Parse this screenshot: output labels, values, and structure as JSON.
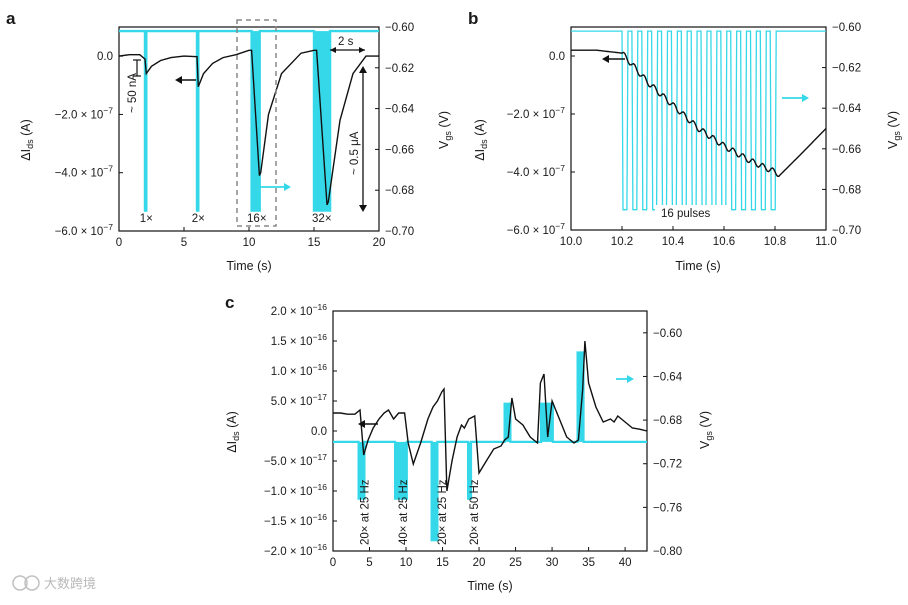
{
  "colors": {
    "cyan": "#35d8e8",
    "black": "#111111",
    "grey": "#888888"
  },
  "watermark": {
    "text": "大数跨境"
  },
  "panels": [
    {
      "letter": "a",
      "xlabel": "Time (s)",
      "ylabel_left": "ΔI",
      "ylabel_left_sub": "ds",
      "ylabel_left_unit": " (A)",
      "ylabel_right": "V",
      "ylabel_right_sub": "gs",
      "ylabel_right_unit": " (V)",
      "xlim": [
        0,
        20
      ],
      "ylim_left": [
        -6e-07,
        1e-07
      ],
      "ylim_right": [
        -0.7,
        -0.6
      ],
      "xticks": [
        "0",
        "5",
        "10",
        "15",
        "20"
      ],
      "xticks_values": [
        0,
        5,
        10,
        15,
        20
      ],
      "yticks_left": [
        "0.0",
        "−2.0 × 10",
        "−4.0 × 10",
        "−6.0 × 10"
      ],
      "yticks_left_exp": [
        "",
        "−7",
        "−7",
        "−7"
      ],
      "yticks_left_values": [
        0,
        -2e-07,
        -4e-07,
        -6e-07
      ],
      "yticks_right": [
        "−0.60",
        "−0.62",
        "−0.64",
        "−0.66",
        "−0.68",
        "−0.70"
      ],
      "yticks_right_values": [
        -0.6,
        -0.62,
        -0.64,
        -0.66,
        -0.68,
        -0.7
      ],
      "annotations": {
        "current_50nA": "~ 50 nA",
        "current_05uA": "~ 0.5 μA",
        "time_2s": "2 s",
        "pulse_labels": [
          "1×",
          "2×",
          "16×",
          "32×"
        ]
      }
    },
    {
      "letter": "b",
      "xlabel": "Time (s)",
      "ylabel_left": "ΔI",
      "ylabel_left_sub": "ds",
      "ylabel_left_unit": " (A)",
      "ylabel_right": "V",
      "ylabel_right_sub": "gs",
      "ylabel_right_unit": " (V)",
      "xlim": [
        10.0,
        11.0
      ],
      "ylim_left": [
        -6e-07,
        1e-07
      ],
      "ylim_right": [
        -0.7,
        -0.6
      ],
      "xticks": [
        "10.0",
        "10.2",
        "10.4",
        "10.6",
        "10.8",
        "11.0"
      ],
      "xticks_values": [
        10.0,
        10.2,
        10.4,
        10.6,
        10.8,
        11.0
      ],
      "yticks_left": [
        "0.0",
        "−2.0 × 10",
        "−4.0 × 10",
        "−6.0 × 10"
      ],
      "yticks_left_exp": [
        "",
        "−7",
        "−7",
        "−7"
      ],
      "yticks_left_values": [
        0,
        -2e-07,
        -4e-07,
        -6e-07
      ],
      "yticks_right": [
        "−0.60",
        "−0.62",
        "−0.64",
        "−0.66",
        "−0.68",
        "−0.70"
      ],
      "yticks_right_values": [
        -0.6,
        -0.62,
        -0.64,
        -0.66,
        -0.68,
        -0.7
      ],
      "annotations": {
        "pulses": "16 pulses"
      }
    },
    {
      "letter": "c",
      "xlabel": "Time (s)",
      "ylabel_left": "ΔI",
      "ylabel_left_sub": "ds",
      "ylabel_left_unit": " (A)",
      "ylabel_right": "V",
      "ylabel_right_sub": "gs",
      "ylabel_right_unit": " (V)",
      "xlim": [
        0,
        43
      ],
      "ylim_left": [
        -2e-16,
        2e-16
      ],
      "ylim_right": [
        -0.8,
        -0.58
      ],
      "xticks": [
        "0",
        "5",
        "10",
        "15",
        "20",
        "25",
        "30",
        "35",
        "40"
      ],
      "xticks_values": [
        0,
        5,
        10,
        15,
        20,
        25,
        30,
        35,
        40
      ],
      "yticks_left": [
        "2.0 × 10",
        "1.5 × 10",
        "1.0 × 10",
        "5.0 × 10",
        "0.0",
        "−5.0 × 10",
        "−1.0 × 10",
        "−1.5 × 10",
        "−2.0 × 10"
      ],
      "yticks_left_exp": [
        "−16",
        "−16",
        "−16",
        "−17",
        "",
        "−17",
        "−16",
        "−16",
        "−16"
      ],
      "yticks_left_values": [
        2e-16,
        1.5e-16,
        1e-16,
        5e-17,
        0,
        -5e-17,
        -1e-16,
        -1.5e-16,
        -2e-16
      ],
      "yticks_right": [
        "−0.60",
        "−0.64",
        "−0.68",
        "−0.72",
        "−0.76",
        "−0.80"
      ],
      "yticks_right_values": [
        -0.6,
        -0.64,
        -0.68,
        -0.72,
        -0.76,
        -0.8
      ],
      "annotations": {
        "conditions": [
          "20× at 25 Hz",
          "40× at 25 Hz",
          "20× at 25 Hz",
          "20× at 50 Hz"
        ]
      }
    }
  ],
  "chart_data": [
    {
      "type": "line",
      "title": "a",
      "xlabel": "Time (s)",
      "ylabel": "ΔIds (A)",
      "y2label": "Vgs (V)",
      "xlim": [
        0,
        20
      ],
      "ylim": [
        -6e-07,
        1e-07
      ],
      "y2lim": [
        -0.7,
        -0.6
      ],
      "series": [
        {
          "name": "ΔIds",
          "axis": "left",
          "color": "#111111",
          "x": [
            0,
            0.8,
            1.6,
            2.0,
            2.1,
            2.5,
            3.2,
            4.0,
            5.0,
            6.0,
            6.1,
            6.5,
            7.2,
            8.0,
            9.0,
            10.0,
            10.2,
            10.8,
            10.9,
            11.5,
            12.5,
            14.0,
            15.0,
            15.2,
            16.0,
            16.1,
            17.0,
            18.0,
            19.0,
            20.0
          ],
          "y": [
            0,
            5e-09,
            5e-09,
            -1e-08,
            -6e-08,
            -3.5e-08,
            -1.5e-08,
            -5e-09,
            0,
            -2e-09,
            -1.05e-07,
            -6e-08,
            -2.5e-08,
            -5e-09,
            5e-09,
            2e-08,
            2e-08,
            -4.1e-07,
            -4e-07,
            -2e-07,
            -6e-08,
            1e-08,
            2e-08,
            2e-08,
            -5.1e-07,
            -5e-07,
            -2.2e-07,
            -6e-08,
            0,
            0
          ]
        },
        {
          "name": "Vgs",
          "axis": "right",
          "color": "#35d8e8",
          "x": [
            0,
            2.0,
            2.0,
            2.1,
            2.1,
            6.0,
            6.0,
            6.1,
            6.1,
            10.2,
            10.2,
            10.82,
            10.82,
            15.0,
            15.0,
            16.24,
            16.24,
            20.0
          ],
          "y": [
            -0.602,
            -0.602,
            -0.69,
            -0.69,
            -0.602,
            -0.602,
            -0.69,
            -0.69,
            -0.602,
            -0.602,
            -0.69,
            -0.69,
            -0.602,
            -0.602,
            -0.69,
            -0.69,
            -0.602,
            -0.602
          ]
        }
      ]
    },
    {
      "type": "line",
      "title": "b",
      "xlabel": "Time (s)",
      "ylabel": "ΔIds (A)",
      "y2label": "Vgs (V)",
      "xlim": [
        10.0,
        11.0
      ],
      "ylim": [
        -6e-07,
        1e-07
      ],
      "y2lim": [
        -0.7,
        -0.6
      ],
      "series": [
        {
          "name": "ΔIds",
          "axis": "left",
          "color": "#111111",
          "x": [
            10.0,
            10.1,
            10.2,
            10.25,
            10.3,
            10.4,
            10.5,
            10.6,
            10.7,
            10.8,
            10.82,
            10.9,
            11.0
          ],
          "y": [
            2e-08,
            2e-08,
            1e-08,
            -4e-08,
            -9e-08,
            -1.7e-07,
            -2.5e-07,
            -3.1e-07,
            -3.6e-07,
            -4e-07,
            -4.1e-07,
            -3.4e-07,
            -2.5e-07
          ]
        },
        {
          "name": "Vgs",
          "axis": "right",
          "color": "#35d8e8",
          "pulses": 16,
          "pulse_start": 10.2,
          "pulse_end": 10.82,
          "high": -0.602,
          "low": -0.69
        }
      ]
    },
    {
      "type": "line",
      "title": "c",
      "xlabel": "Time (s)",
      "ylabel": "ΔIds (A)",
      "y2label": "Vgs (V)",
      "xlim": [
        0,
        43
      ],
      "ylim": [
        -2e-16,
        2e-16
      ],
      "y2lim": [
        -0.8,
        -0.58
      ],
      "series": [
        {
          "name": "ΔIds",
          "axis": "left",
          "color": "#111111",
          "x": [
            0,
            1,
            2,
            3,
            3.7,
            4.2,
            4.8,
            5.5,
            6.3,
            7.0,
            7.6,
            8.3,
            9.0,
            9.8,
            10.3,
            11.0,
            12.0,
            13.0,
            13.7,
            14.3,
            14.9,
            15.2,
            15.6,
            16.3,
            17.0,
            17.6,
            18.0,
            18.6,
            19.4,
            20.0,
            21.0,
            22.0,
            23.0,
            23.5,
            24.0,
            24.5,
            25.0,
            26.0,
            27.0,
            28.0,
            28.4,
            28.9,
            29.4,
            30.0,
            31.0,
            32.0,
            33.0,
            33.6,
            34.2,
            34.5,
            35.0,
            36.0,
            37.0,
            38.0,
            38.5,
            39.0,
            40.0,
            41.0,
            42.0,
            43.0
          ],
          "y": [
            3e-17,
            3e-17,
            2.8e-17,
            2.8e-17,
            3.5e-17,
            -4e-17,
            -1.5e-17,
            5e-18,
            2e-17,
            3e-17,
            3.5e-17,
            2e-17,
            3e-17,
            3e-17,
            -2e-17,
            -5.5e-17,
            -2e-17,
            2e-17,
            4e-17,
            5e-17,
            6.5e-17,
            7e-17,
            -1e-16,
            -5e-17,
            -1e-17,
            1e-17,
            5e-18,
            2e-17,
            2.5e-17,
            -7e-17,
            -5e-17,
            -3e-17,
            -2.5e-17,
            -1.5e-17,
            -1e-17,
            5.5e-17,
            2e-17,
            1e-17,
            -1e-17,
            -2e-17,
            8e-17,
            9.5e-17,
            -1e-17,
            5e-17,
            2e-17,
            -1e-17,
            -2e-17,
            -1.5e-17,
            7e-17,
            1.5e-16,
            8e-17,
            4e-17,
            1.5e-17,
            2e-17,
            1.5e-17,
            2.5e-17,
            1.5e-17,
            5e-18,
            3e-18,
            0
          ]
        },
        {
          "name": "Vgs",
          "axis": "right",
          "color": "#35d8e8",
          "x": [
            0,
            3.5,
            3.5,
            4.3,
            4.3,
            8.5,
            8.5,
            10.1,
            10.1,
            13.5,
            13.5,
            14.3,
            14.3,
            18.5,
            18.5,
            18.9,
            18.9,
            23.5,
            23.5,
            24.3,
            24.3,
            28.5,
            28.5,
            30.1,
            30.1,
            33.5,
            33.5,
            34.3,
            34.3,
            43.0
          ],
          "y": [
            -0.7,
            -0.7,
            -0.752,
            -0.752,
            -0.7,
            -0.7,
            -0.752,
            -0.752,
            -0.7,
            -0.7,
            -0.79,
            -0.79,
            -0.7,
            -0.7,
            -0.752,
            -0.752,
            -0.7,
            -0.7,
            -0.665,
            -0.665,
            -0.7,
            -0.7,
            -0.665,
            -0.665,
            -0.7,
            -0.7,
            -0.618,
            -0.618,
            -0.7,
            -0.7
          ]
        }
      ]
    }
  ]
}
